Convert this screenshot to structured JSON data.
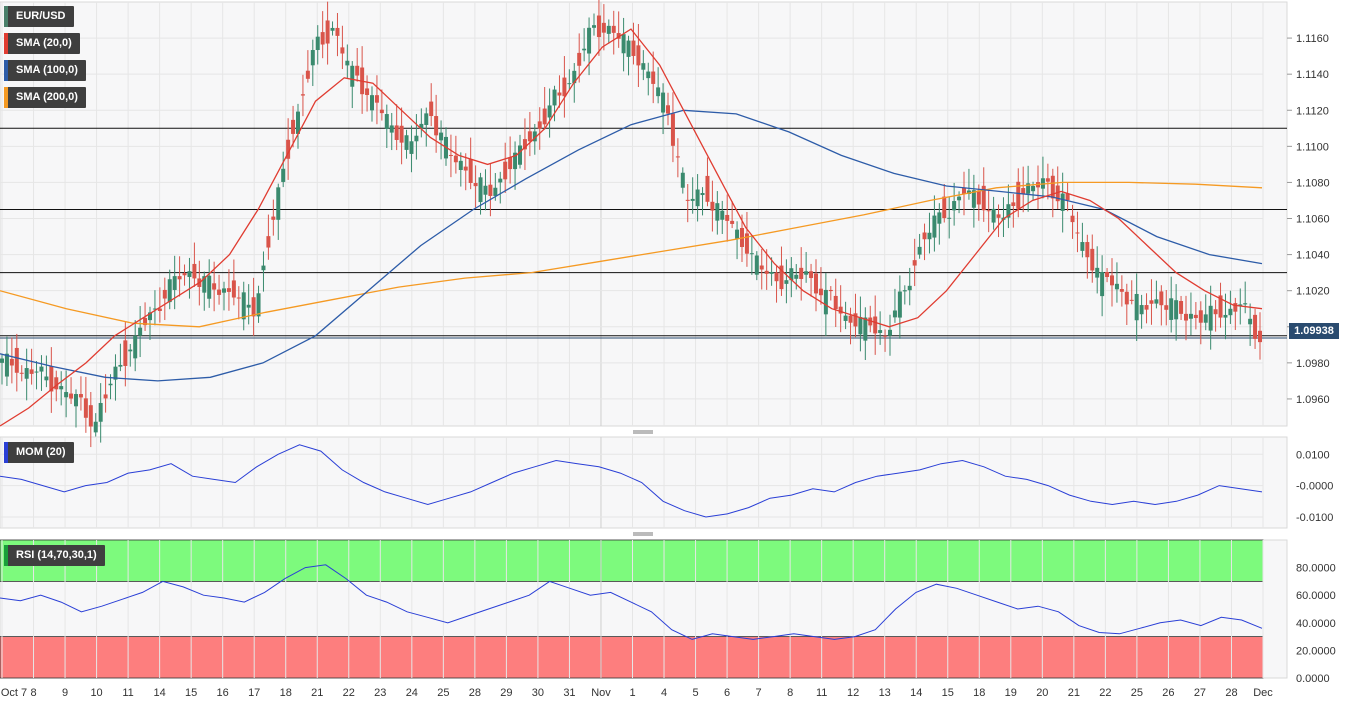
{
  "legends": {
    "symbol": {
      "label": "EUR/USD",
      "color": "#4a7f6a"
    },
    "sma20": {
      "label": "SMA (20,0)",
      "color": "#e03c31"
    },
    "sma100": {
      "label": "SMA (100,0)",
      "color": "#2d5ca8"
    },
    "sma200": {
      "label": "SMA (200,0)",
      "color": "#f59a23"
    },
    "mom": {
      "label": "MOM (20)",
      "color": "#2a3fd6"
    },
    "rsi": {
      "label": "RSI (14,70,30,1)",
      "color": "#1a9e3a"
    }
  },
  "last_price_label": "1.09938",
  "chart_data": [
    {
      "type": "candlestick",
      "name": "EUR/USD",
      "ylim": [
        1.0945,
        1.118
      ],
      "yticks": [
        "1.0960",
        "1.0980",
        "1.1000",
        "1.1020",
        "1.1040",
        "1.1060",
        "1.1080",
        "1.1100",
        "1.1120",
        "1.1140",
        "1.1160"
      ],
      "x_labels": [
        "Oct 7",
        "8",
        "9",
        "10",
        "11",
        "14",
        "15",
        "16",
        "17",
        "18",
        "21",
        "22",
        "23",
        "24",
        "25",
        "28",
        "29",
        "30",
        "31",
        "Nov",
        "1",
        "4",
        "5",
        "6",
        "7",
        "8",
        "11",
        "12",
        "13",
        "14",
        "15",
        "18",
        "19",
        "20",
        "21",
        "22",
        "25",
        "26",
        "27",
        "28",
        "Dec"
      ],
      "horizontal_levels": [
        1.111,
        1.1065,
        1.103,
        1.0995
      ],
      "last_price": 1.09938,
      "closes": [
        1.098,
        1.0975,
        1.0968,
        1.096,
        1.0945,
        1.0975,
        1.099,
        1.101,
        1.1025,
        1.103,
        1.1022,
        1.102,
        1.101,
        1.106,
        1.111,
        1.115,
        1.1165,
        1.114,
        1.1125,
        1.111,
        1.11,
        1.112,
        1.1095,
        1.1085,
        1.1075,
        1.109,
        1.1105,
        1.112,
        1.1135,
        1.116,
        1.1165,
        1.1155,
        1.114,
        1.112,
        1.107,
        1.1075,
        1.106,
        1.1045,
        1.103,
        1.1025,
        1.103,
        1.1015,
        1.1005,
        1.1,
        1.0995,
        1.102,
        1.105,
        1.1065,
        1.1075,
        1.107,
        1.106,
        1.1075,
        1.108,
        1.107,
        1.1045,
        1.1025,
        1.102,
        1.101,
        1.1015,
        1.101,
        1.1005,
        1.101,
        1.1012,
        1.0994
      ],
      "sma20": [
        1.0945,
        1.0955,
        1.0968,
        1.098,
        1.0995,
        1.1005,
        1.1015,
        1.1025,
        1.104,
        1.1065,
        1.1095,
        1.1125,
        1.1138,
        1.1135,
        1.112,
        1.1105,
        1.1095,
        1.109,
        1.1095,
        1.111,
        1.1135,
        1.1155,
        1.1165,
        1.1145,
        1.1115,
        1.1085,
        1.1055,
        1.1035,
        1.102,
        1.101,
        1.1005,
        1.1,
        1.1005,
        1.102,
        1.104,
        1.106,
        1.107,
        1.1075,
        1.107,
        1.106,
        1.1045,
        1.103,
        1.102,
        1.1012,
        1.101
      ],
      "sma100": [
        1.0985,
        1.0978,
        1.0972,
        1.097,
        1.0972,
        1.098,
        1.0995,
        1.102,
        1.1045,
        1.1065,
        1.1082,
        1.1098,
        1.1112,
        1.112,
        1.1118,
        1.1108,
        1.1095,
        1.1085,
        1.1078,
        1.1075,
        1.1072,
        1.1065,
        1.105,
        1.104,
        1.1035
      ],
      "sma200": [
        1.102,
        1.101,
        1.1002,
        1.1,
        1.1008,
        1.1015,
        1.1022,
        1.1027,
        1.103,
        1.1036,
        1.1042,
        1.1048,
        1.1055,
        1.1062,
        1.107,
        1.1077,
        1.108,
        1.108,
        1.1079,
        1.1077
      ]
    },
    {
      "type": "line",
      "name": "MOM (20)",
      "yticks": [
        "0.0100",
        "-0.0000",
        "-0.0100"
      ],
      "ylim": [
        -0.0135,
        0.0155
      ],
      "values": [
        0.003,
        0.002,
        0.0,
        -0.002,
        0.0,
        0.001,
        0.004,
        0.005,
        0.007,
        0.003,
        0.002,
        0.001,
        0.006,
        0.01,
        0.013,
        0.011,
        0.005,
        0.001,
        -0.002,
        -0.004,
        -0.006,
        -0.004,
        -0.002,
        0.001,
        0.004,
        0.006,
        0.008,
        0.007,
        0.006,
        0.004,
        0.001,
        -0.005,
        -0.008,
        -0.01,
        -0.009,
        -0.007,
        -0.004,
        -0.003,
        -0.001,
        -0.002,
        0.001,
        0.003,
        0.004,
        0.005,
        0.007,
        0.008,
        0.006,
        0.003,
        0.002,
        0.0,
        -0.003,
        -0.005,
        -0.006,
        -0.005,
        -0.006,
        -0.005,
        -0.003,
        0.0,
        -0.001,
        -0.002
      ]
    },
    {
      "type": "line",
      "name": "RSI (14,70,30,1)",
      "yticks": [
        "80.0000",
        "60.0000",
        "40.0000",
        "20.0000",
        "0.0000"
      ],
      "ylim": [
        0,
        100
      ],
      "overbought": 70,
      "oversold": 30,
      "values": [
        58,
        56,
        60,
        55,
        48,
        52,
        57,
        62,
        70,
        66,
        60,
        58,
        55,
        62,
        72,
        80,
        82,
        72,
        60,
        55,
        48,
        44,
        40,
        45,
        50,
        55,
        60,
        70,
        65,
        60,
        62,
        55,
        48,
        35,
        28,
        32,
        30,
        28,
        30,
        32,
        30,
        28,
        30,
        35,
        50,
        62,
        68,
        65,
        60,
        55,
        50,
        52,
        48,
        38,
        33,
        32,
        36,
        40,
        42,
        38,
        44,
        42,
        36
      ]
    }
  ]
}
